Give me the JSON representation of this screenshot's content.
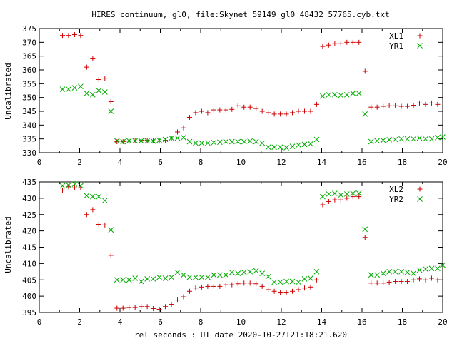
{
  "chart_data": [
    {
      "type": "scatter",
      "title": "HIRES continuum, gl0, file:Skynet_59149_gl0_48432_57765.cyb.txt",
      "xlabel": "",
      "ylabel": "Uncalibrated",
      "xlim": [
        0,
        20
      ],
      "ylim": [
        330,
        375
      ],
      "xticks": [
        0,
        2,
        4,
        6,
        8,
        10,
        12,
        14,
        16,
        18,
        20
      ],
      "yticks": [
        330,
        335,
        340,
        345,
        350,
        355,
        360,
        365,
        370,
        375
      ],
      "grid": false,
      "legend_position": "top-right",
      "series": [
        {
          "name": "XL1",
          "marker": "plus",
          "color": "#cc0000",
          "x": [
            1.15,
            1.45,
            1.75,
            2.05,
            2.35,
            2.65,
            2.95,
            3.25,
            3.55,
            3.85,
            4.15,
            4.45,
            4.75,
            5.05,
            5.35,
            5.65,
            5.95,
            6.25,
            6.55,
            6.85,
            7.15,
            7.45,
            7.75,
            8.05,
            8.35,
            8.65,
            8.95,
            9.25,
            9.55,
            9.85,
            10.15,
            10.45,
            10.75,
            11.05,
            11.35,
            11.65,
            11.95,
            12.25,
            12.55,
            12.85,
            13.15,
            13.45,
            13.75,
            14.05,
            14.35,
            14.65,
            14.95,
            15.25,
            15.55,
            15.85,
            16.15,
            16.45,
            16.75,
            17.05,
            17.35,
            17.65,
            17.95,
            18.25,
            18.55,
            18.85,
            19.15,
            19.45,
            19.75
          ],
          "y": [
            372.5,
            372.5,
            372.8,
            372.5,
            361,
            364,
            356.5,
            357,
            348.5,
            334,
            334,
            334.2,
            334.3,
            334.5,
            334.5,
            334.3,
            334.3,
            334.5,
            335.3,
            337.5,
            339,
            342.8,
            344.5,
            345,
            344.5,
            345.5,
            345.5,
            345.5,
            345.7,
            347,
            346.5,
            346.5,
            346,
            345,
            344.5,
            344,
            344,
            344,
            344.5,
            345,
            345,
            345,
            347.5,
            368.5,
            369,
            369.5,
            369.5,
            370,
            370,
            370,
            359.5,
            346.5,
            346.5,
            346.8,
            347,
            347,
            346.8,
            346.8,
            347.2,
            348,
            347.5,
            348,
            347.5
          ]
        },
        {
          "name": "YR1",
          "marker": "cross",
          "color": "#00aa00",
          "x": [
            1.15,
            1.45,
            1.75,
            2.05,
            2.35,
            2.65,
            2.95,
            3.25,
            3.55,
            3.85,
            4.15,
            4.45,
            4.75,
            5.05,
            5.35,
            5.65,
            5.95,
            6.25,
            6.55,
            6.85,
            7.15,
            7.45,
            7.75,
            8.05,
            8.35,
            8.65,
            8.95,
            9.25,
            9.55,
            9.85,
            10.15,
            10.45,
            10.75,
            11.05,
            11.35,
            11.65,
            11.95,
            12.25,
            12.55,
            12.85,
            13.15,
            13.45,
            13.75,
            14.05,
            14.35,
            14.65,
            14.95,
            15.25,
            15.55,
            15.85,
            16.15,
            16.45,
            16.75,
            17.05,
            17.35,
            17.65,
            17.95,
            18.25,
            18.55,
            18.85,
            19.15,
            19.45,
            19.75,
            20
          ],
          "y": [
            353,
            353,
            353.5,
            354,
            351.5,
            351,
            352.5,
            352,
            345,
            334.3,
            334,
            334.3,
            334.3,
            334.3,
            334.3,
            334.2,
            334.5,
            334.8,
            335.3,
            335.3,
            335.5,
            334,
            333.5,
            333.5,
            333.5,
            333.7,
            333.8,
            334,
            334,
            334,
            334,
            334.2,
            334,
            333.5,
            332,
            332,
            332,
            331.8,
            332.3,
            332.8,
            333,
            333.2,
            334.8,
            350.5,
            351,
            351,
            350.8,
            351,
            351.5,
            351.5,
            344,
            334,
            334.3,
            334.5,
            334.7,
            334.8,
            335,
            335,
            335,
            335.3,
            335,
            335,
            335.5,
            335.7
          ]
        }
      ]
    },
    {
      "type": "scatter",
      "title": "",
      "xlabel": "rel seconds : UT date 2020-10-27T21:18:21.620",
      "ylabel": "Uncalibrated",
      "xlim": [
        0,
        20
      ],
      "ylim": [
        395,
        435
      ],
      "xticks": [
        0,
        2,
        4,
        6,
        8,
        10,
        12,
        14,
        16,
        18,
        20
      ],
      "yticks": [
        395,
        400,
        405,
        410,
        415,
        420,
        425,
        430,
        435
      ],
      "grid": false,
      "legend_position": "top-right",
      "series": [
        {
          "name": "XL2",
          "marker": "plus",
          "color": "#cc0000",
          "x": [
            1.15,
            1.45,
            1.75,
            2.05,
            2.35,
            2.65,
            2.95,
            3.25,
            3.55,
            3.85,
            4.15,
            4.45,
            4.75,
            5.05,
            5.35,
            5.65,
            5.95,
            6.25,
            6.55,
            6.85,
            7.15,
            7.45,
            7.75,
            8.05,
            8.35,
            8.65,
            8.95,
            9.25,
            9.55,
            9.85,
            10.15,
            10.45,
            10.75,
            11.05,
            11.35,
            11.65,
            11.95,
            12.25,
            12.55,
            12.85,
            13.15,
            13.45,
            13.75,
            14.05,
            14.35,
            14.65,
            14.95,
            15.25,
            15.55,
            15.85,
            16.15,
            16.45,
            16.75,
            17.05,
            17.35,
            17.65,
            17.95,
            18.25,
            18.55,
            18.85,
            19.15,
            19.45,
            19.75
          ],
          "y": [
            432.5,
            433.5,
            433.2,
            433.2,
            425,
            426.5,
            422,
            421.8,
            412.5,
            396.3,
            396.3,
            396.5,
            396.5,
            396.8,
            396.8,
            396.2,
            396,
            396.8,
            397.5,
            398.8,
            399.8,
            401.5,
            402.5,
            402.8,
            403,
            403,
            403,
            403.5,
            403.5,
            403.8,
            404,
            404,
            403.8,
            403,
            402,
            401.5,
            401,
            401,
            401.5,
            402,
            402.5,
            402.8,
            405,
            428,
            429,
            429.5,
            429.5,
            430,
            430.5,
            430.5,
            418,
            404,
            404,
            404,
            404.3,
            404.5,
            404.5,
            404.5,
            405,
            405.3,
            405,
            405.5,
            405
          ]
        },
        {
          "name": "YR2",
          "marker": "cross",
          "color": "#00aa00",
          "x": [
            1.15,
            1.45,
            1.75,
            2.05,
            2.35,
            2.65,
            2.95,
            3.25,
            3.55,
            3.85,
            4.15,
            4.45,
            4.75,
            5.05,
            5.35,
            5.65,
            5.95,
            6.25,
            6.55,
            6.85,
            7.15,
            7.45,
            7.75,
            8.05,
            8.35,
            8.65,
            8.95,
            9.25,
            9.55,
            9.85,
            10.15,
            10.45,
            10.75,
            11.05,
            11.35,
            11.65,
            11.95,
            12.25,
            12.55,
            12.85,
            13.15,
            13.45,
            13.75,
            14.05,
            14.35,
            14.65,
            14.95,
            15.25,
            15.55,
            15.85,
            16.15,
            16.45,
            16.75,
            17.05,
            17.35,
            17.65,
            17.95,
            18.25,
            18.55,
            18.85,
            19.15,
            19.45,
            19.75,
            20
          ],
          "y": [
            433.8,
            434,
            434.3,
            433.8,
            430.8,
            430.5,
            430.5,
            429.3,
            420.3,
            405,
            405,
            405,
            405.5,
            404.5,
            405.3,
            405.3,
            405.8,
            405.5,
            405.8,
            407.3,
            406.5,
            405.8,
            405.8,
            405.8,
            405.8,
            406.5,
            406.5,
            406.5,
            407.3,
            407,
            407.3,
            407.5,
            407.8,
            407,
            406,
            404.3,
            404.3,
            404.5,
            404.5,
            404.3,
            405.3,
            405.5,
            407.5,
            430.5,
            431.3,
            431.5,
            431,
            431.3,
            431.5,
            431.5,
            420.5,
            406.5,
            406.5,
            407,
            407.5,
            407.5,
            407.5,
            407.3,
            407,
            408,
            408.3,
            408.5,
            408.5,
            409.5
          ]
        }
      ]
    }
  ]
}
